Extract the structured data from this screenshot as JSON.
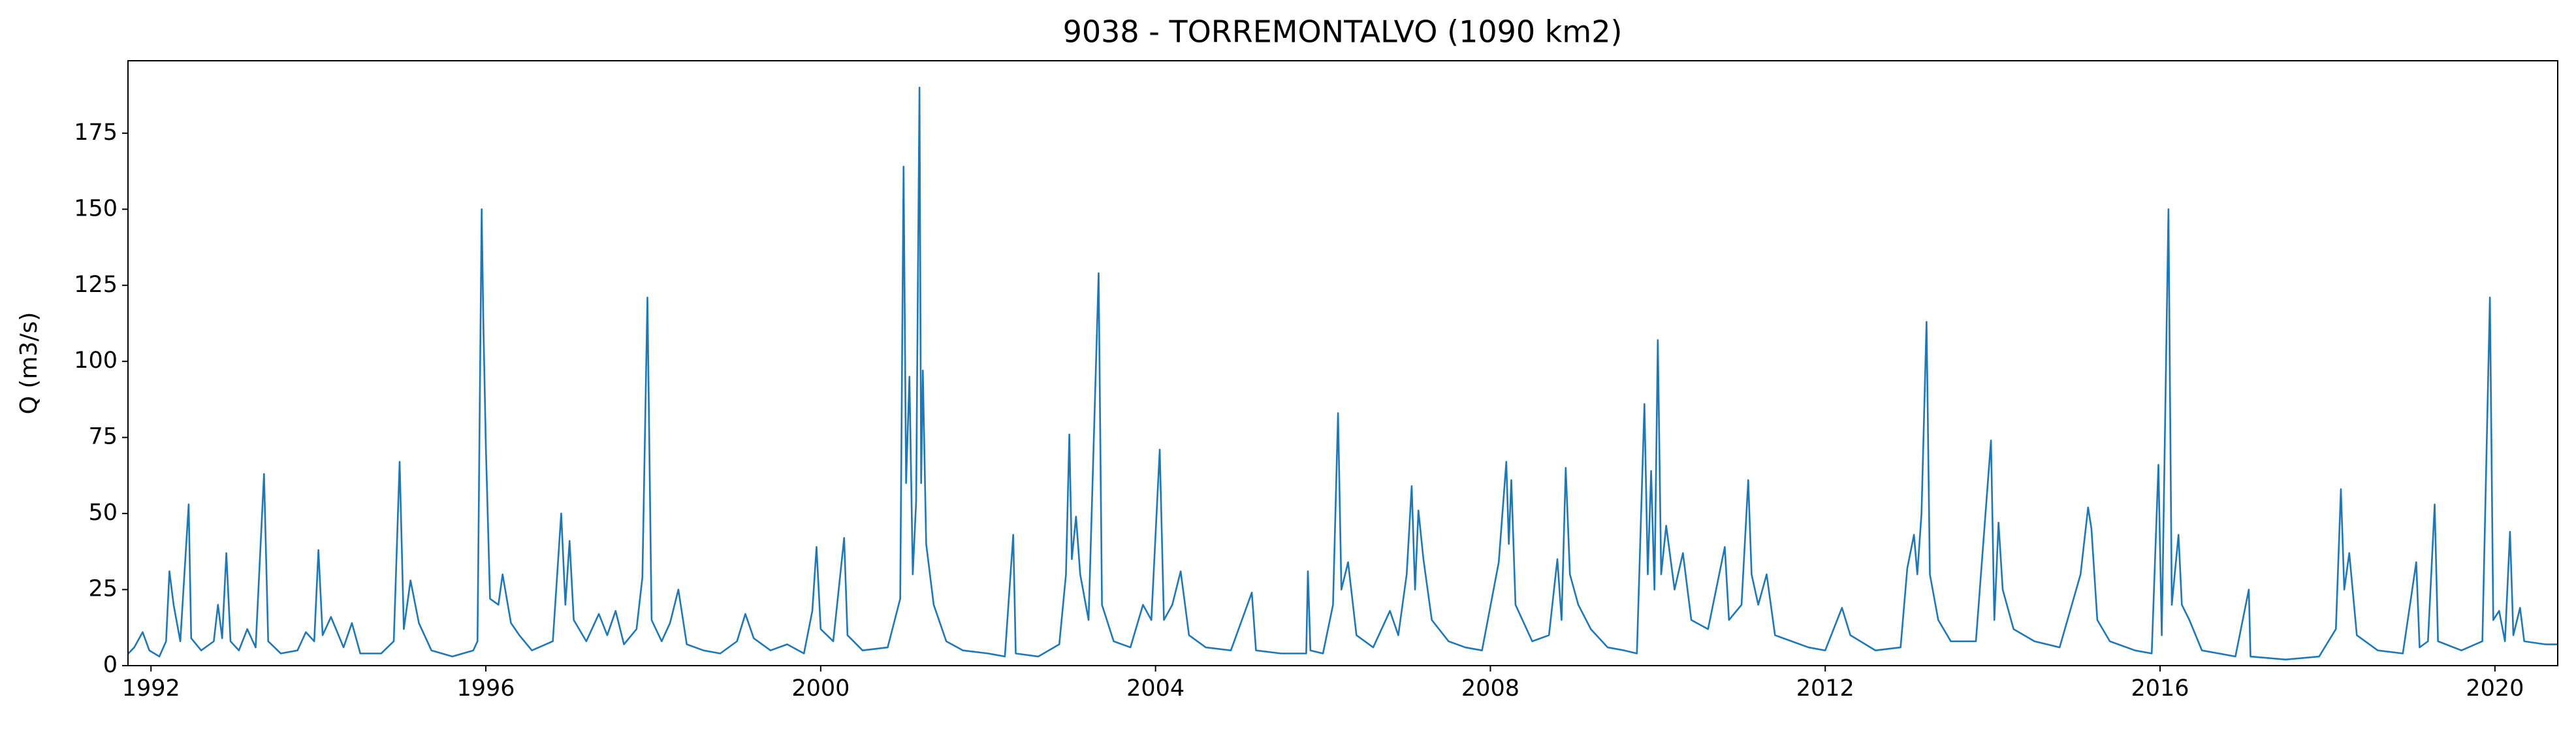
{
  "chart_data": {
    "type": "line",
    "title": "9038 - TORREMONTALVO (1090 km2)",
    "y_label": "Q (m3/s)",
    "color": "#1f77b4",
    "x": [
      1991.73,
      1991.8,
      1991.9,
      1991.98,
      1992.1,
      1992.18,
      1992.22,
      1992.27,
      1992.35,
      1992.45,
      1992.48,
      1992.6,
      1992.75,
      1992.8,
      1992.85,
      1992.9,
      1992.95,
      1993.05,
      1993.15,
      1993.25,
      1993.35,
      1993.4,
      1993.55,
      1993.75,
      1993.85,
      1993.95,
      1994.0,
      1994.05,
      1994.15,
      1994.3,
      1994.4,
      1994.5,
      1994.75,
      1994.9,
      1994.97,
      1995.02,
      1995.1,
      1995.2,
      1995.35,
      1995.6,
      1995.85,
      1995.9,
      1995.95,
      1995.97,
      1996.0,
      1996.05,
      1996.15,
      1996.2,
      1996.3,
      1996.4,
      1996.55,
      1996.8,
      1996.9,
      1996.95,
      1997.0,
      1997.05,
      1997.2,
      1997.35,
      1997.45,
      1997.55,
      1997.65,
      1997.8,
      1997.87,
      1997.93,
      1997.98,
      1998.1,
      1998.2,
      1998.3,
      1998.4,
      1998.6,
      1998.8,
      1999.0,
      1999.1,
      1999.2,
      1999.4,
      1999.6,
      1999.8,
      1999.9,
      1999.95,
      2000.0,
      2000.15,
      2000.28,
      2000.32,
      2000.5,
      2000.8,
      2000.95,
      2000.99,
      2001.02,
      2001.06,
      2001.1,
      2001.14,
      2001.18,
      2001.2,
      2001.22,
      2001.26,
      2001.35,
      2001.5,
      2001.7,
      2002.0,
      2002.2,
      2002.3,
      2002.33,
      2002.6,
      2002.85,
      2002.93,
      2002.97,
      2003.0,
      2003.05,
      2003.1,
      2003.2,
      2003.32,
      2003.36,
      2003.5,
      2003.7,
      2003.85,
      2003.95,
      2004.05,
      2004.1,
      2004.2,
      2004.3,
      2004.4,
      2004.6,
      2004.9,
      2005.15,
      2005.2,
      2005.5,
      2005.8,
      2005.82,
      2005.85,
      2006.0,
      2006.12,
      2006.18,
      2006.22,
      2006.3,
      2006.4,
      2006.6,
      2006.8,
      2006.9,
      2007.0,
      2007.06,
      2007.1,
      2007.14,
      2007.2,
      2007.3,
      2007.5,
      2007.7,
      2007.9,
      2008.1,
      2008.19,
      2008.22,
      2008.25,
      2008.3,
      2008.5,
      2008.7,
      2008.8,
      2008.85,
      2008.9,
      2008.95,
      2009.05,
      2009.2,
      2009.4,
      2009.6,
      2009.75,
      2009.84,
      2009.88,
      2009.92,
      2009.96,
      2010.0,
      2010.04,
      2010.1,
      2010.2,
      2010.3,
      2010.4,
      2010.6,
      2010.8,
      2010.85,
      2011.0,
      2011.08,
      2011.12,
      2011.2,
      2011.3,
      2011.4,
      2011.6,
      2011.8,
      2012.0,
      2012.2,
      2012.3,
      2012.6,
      2012.9,
      2012.98,
      2013.06,
      2013.1,
      2013.15,
      2013.21,
      2013.25,
      2013.35,
      2013.5,
      2013.8,
      2013.98,
      2014.02,
      2014.07,
      2014.12,
      2014.25,
      2014.5,
      2014.8,
      2015.05,
      2015.14,
      2015.18,
      2015.25,
      2015.4,
      2015.7,
      2015.9,
      2015.98,
      2016.02,
      2016.1,
      2016.14,
      2016.22,
      2016.26,
      2016.35,
      2016.5,
      2016.9,
      2017.06,
      2017.08,
      2017.5,
      2017.9,
      2018.1,
      2018.16,
      2018.2,
      2018.26,
      2018.35,
      2018.6,
      2018.9,
      2019.06,
      2019.1,
      2019.2,
      2019.28,
      2019.32,
      2019.6,
      2019.85,
      2019.94,
      2019.98,
      2020.05,
      2020.12,
      2020.18,
      2020.22,
      2020.3,
      2020.35,
      2020.6,
      2020.75
    ],
    "values": [
      4,
      6,
      11,
      5,
      3,
      8,
      31,
      20,
      8,
      53,
      9,
      5,
      8,
      20,
      9,
      37,
      8,
      5,
      12,
      6,
      63,
      8,
      4,
      5,
      11,
      8,
      38,
      10,
      16,
      6,
      14,
      4,
      4,
      8,
      67,
      12,
      28,
      14,
      5,
      3,
      5,
      8,
      150,
      113,
      72,
      22,
      20,
      30,
      14,
      10,
      5,
      8,
      50,
      20,
      41,
      15,
      8,
      17,
      10,
      18,
      7,
      12,
      29,
      121,
      15,
      8,
      14,
      25,
      7,
      5,
      4,
      8,
      17,
      9,
      5,
      7,
      4,
      18,
      39,
      12,
      8,
      42,
      10,
      5,
      6,
      22,
      164,
      60,
      95,
      30,
      54,
      190,
      60,
      97,
      40,
      20,
      8,
      5,
      4,
      3,
      43,
      4,
      3,
      7,
      30,
      76,
      35,
      49,
      30,
      15,
      129,
      20,
      8,
      6,
      20,
      15,
      71,
      15,
      20,
      31,
      10,
      6,
      5,
      24,
      5,
      4,
      4,
      31,
      5,
      4,
      20,
      83,
      25,
      34,
      10,
      6,
      18,
      10,
      30,
      59,
      25,
      51,
      35,
      15,
      8,
      6,
      5,
      34,
      67,
      40,
      61,
      20,
      8,
      10,
      35,
      15,
      65,
      30,
      20,
      12,
      6,
      5,
      4,
      86,
      30,
      64,
      25,
      107,
      30,
      46,
      25,
      37,
      15,
      12,
      39,
      15,
      20,
      61,
      30,
      20,
      30,
      10,
      8,
      6,
      5,
      19,
      10,
      5,
      6,
      32,
      43,
      30,
      50,
      113,
      30,
      15,
      8,
      8,
      74,
      15,
      47,
      25,
      12,
      8,
      6,
      30,
      52,
      45,
      15,
      8,
      5,
      4,
      66,
      10,
      150,
      20,
      43,
      20,
      15,
      5,
      3,
      25,
      3,
      2,
      3,
      12,
      58,
      25,
      37,
      10,
      5,
      4,
      34,
      6,
      8,
      53,
      8,
      5,
      8,
      121,
      15,
      18,
      8,
      44,
      10,
      19,
      8,
      7,
      7
    ],
    "xlim": [
      1991.725,
      2020.75
    ],
    "xticks": [
      1992,
      1996,
      2000,
      2004,
      2008,
      2012,
      2016,
      2020
    ],
    "ylim": [
      0,
      198.8
    ],
    "yticks": [
      0,
      25,
      50,
      75,
      100,
      125,
      150,
      175
    ]
  }
}
